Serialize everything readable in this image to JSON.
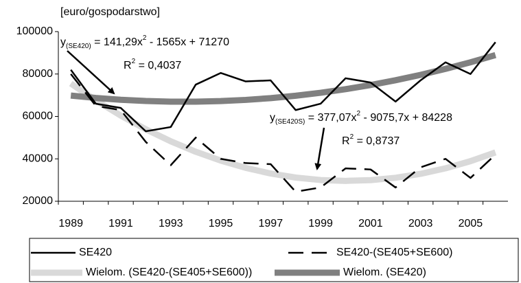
{
  "chart_data": {
    "type": "line",
    "y_label": "[euro/gospodarstwo]",
    "categories": [
      "1989",
      null,
      "1991",
      null,
      "1993",
      null,
      "1995",
      null,
      "1997",
      null,
      "1999",
      null,
      "2001",
      null,
      "2003",
      null,
      "2005",
      null
    ],
    "ylim": [
      20000,
      100000
    ],
    "yticks": [
      20000,
      40000,
      60000,
      80000,
      100000
    ],
    "grid": false,
    "series": [
      {
        "name": "SE420",
        "color": "#000000",
        "dash": "solid",
        "values": [
          82000,
          66000,
          64000,
          53000,
          55000,
          75000,
          80500,
          76500,
          77000,
          63000,
          66000,
          78000,
          76000,
          67000,
          77000,
          85500,
          80000,
          95000
        ]
      },
      {
        "name": "SE420-(SE405+SE600)",
        "color": "#000000",
        "dash": "dashed",
        "values": [
          80000,
          65000,
          63000,
          48000,
          37000,
          50000,
          40000,
          38000,
          37500,
          24500,
          26500,
          35500,
          35000,
          26500,
          36000,
          40000,
          31000,
          42000
        ]
      },
      {
        "name": "Wielom. (SE420-(SE405+SE600))",
        "color": "#d9d9d9",
        "dash": "solid",
        "values": [
          75529,
          67584,
          60394,
          53958,
          48275,
          43347,
          39173,
          35753,
          33087,
          31175,
          30017,
          29613,
          29963,
          31067,
          32926,
          35538,
          38904,
          43024
        ]
      },
      {
        "name": "Wielom. (SE420)",
        "color": "#808080",
        "dash": "solid",
        "values": [
          69846,
          68705,
          67847,
          67271,
          66977,
          66967,
          67239,
          67795,
          68633,
          69754,
          71158,
          72846,
          74816,
          77070,
          79607,
          82426,
          85529,
          88915
        ]
      }
    ],
    "annotations": [
      {
        "y": "y",
        "sub": "(SE420)",
        "eq": " = 141,29x",
        "sup": "2",
        "rest": " - 1565x + 71270",
        "r": "R",
        "rsup": "2",
        "rval": " = 0,4037"
      },
      {
        "y": "y",
        "sub": "(SE420S)",
        "eq": " = 377,07x",
        "sup": "2",
        "rest": " - 9075,7x + 84228",
        "r": "R",
        "rsup": "2",
        "rval": " = 0,8737"
      }
    ]
  }
}
